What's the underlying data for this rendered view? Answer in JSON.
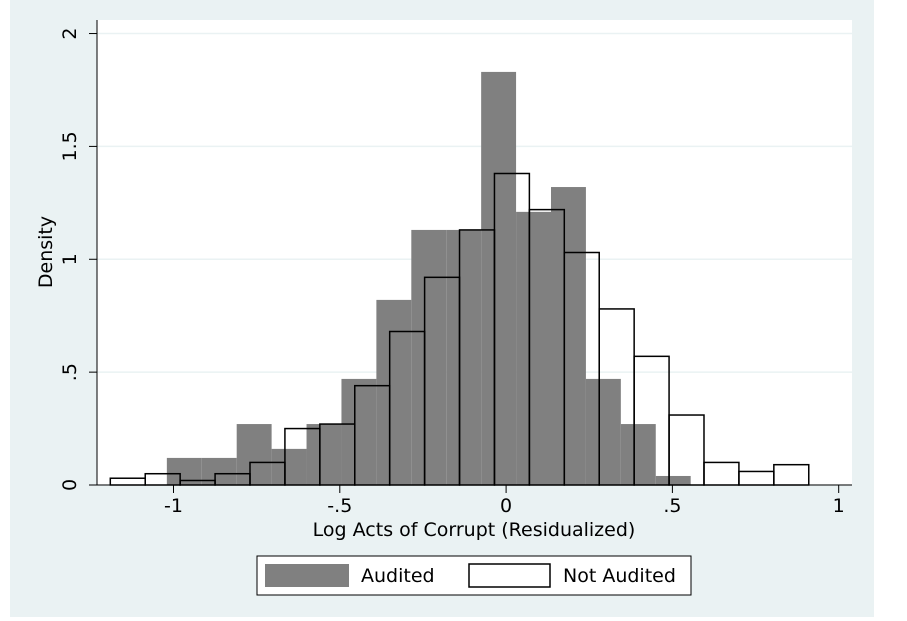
{
  "chart_data": {
    "type": "bar",
    "subtype": "overlaid-histogram",
    "title": "",
    "xlabel": "Log Acts of Corrupt (Residualized)",
    "ylabel": "Density",
    "xlim": [
      -1.23,
      1.04
    ],
    "ylim": [
      0,
      2.06
    ],
    "xticks": [
      {
        "value": -1,
        "label": "-1"
      },
      {
        "value": -0.5,
        "label": "-.5"
      },
      {
        "value": 0,
        "label": "0"
      },
      {
        "value": 0.5,
        "label": ".5"
      },
      {
        "value": 1,
        "label": "1"
      }
    ],
    "yticks": [
      {
        "value": 0,
        "label": "0"
      },
      {
        "value": 0.5,
        "label": ".5"
      },
      {
        "value": 1,
        "label": "1"
      },
      {
        "value": 1.5,
        "label": "1.5"
      },
      {
        "value": 2,
        "label": "2"
      }
    ],
    "grid": true,
    "legend_position": "bottom",
    "series": [
      {
        "name": "Audited",
        "style": "filled",
        "color": "#808080",
        "bins": [
          {
            "x0": -1.02,
            "x1": -0.915,
            "y": 0.12
          },
          {
            "x0": -0.915,
            "x1": -0.81,
            "y": 0.12
          },
          {
            "x0": -0.81,
            "x1": -0.705,
            "y": 0.27
          },
          {
            "x0": -0.705,
            "x1": -0.6,
            "y": 0.16
          },
          {
            "x0": -0.6,
            "x1": -0.495,
            "y": 0.27
          },
          {
            "x0": -0.495,
            "x1": -0.39,
            "y": 0.47
          },
          {
            "x0": -0.39,
            "x1": -0.285,
            "y": 0.82
          },
          {
            "x0": -0.285,
            "x1": -0.18,
            "y": 1.13
          },
          {
            "x0": -0.18,
            "x1": -0.075,
            "y": 1.13
          },
          {
            "x0": -0.075,
            "x1": 0.03,
            "y": 1.83
          },
          {
            "x0": 0.03,
            "x1": 0.135,
            "y": 1.21
          },
          {
            "x0": 0.135,
            "x1": 0.24,
            "y": 1.32
          },
          {
            "x0": 0.24,
            "x1": 0.345,
            "y": 0.47
          },
          {
            "x0": 0.345,
            "x1": 0.45,
            "y": 0.27
          },
          {
            "x0": 0.45,
            "x1": 0.555,
            "y": 0.04
          }
        ]
      },
      {
        "name": "Not Audited",
        "style": "outline",
        "color": "#000000",
        "bins": [
          {
            "x0": -1.19,
            "x1": -1.085,
            "y": 0.03
          },
          {
            "x0": -1.085,
            "x1": -0.98,
            "y": 0.05
          },
          {
            "x0": -0.98,
            "x1": -0.875,
            "y": 0.02
          },
          {
            "x0": -0.875,
            "x1": -0.77,
            "y": 0.05
          },
          {
            "x0": -0.77,
            "x1": -0.665,
            "y": 0.1
          },
          {
            "x0": -0.665,
            "x1": -0.56,
            "y": 0.25
          },
          {
            "x0": -0.56,
            "x1": -0.455,
            "y": 0.27
          },
          {
            "x0": -0.455,
            "x1": -0.35,
            "y": 0.44
          },
          {
            "x0": -0.35,
            "x1": -0.245,
            "y": 0.68
          },
          {
            "x0": -0.245,
            "x1": -0.14,
            "y": 0.92
          },
          {
            "x0": -0.14,
            "x1": -0.035,
            "y": 1.13
          },
          {
            "x0": -0.035,
            "x1": 0.07,
            "y": 1.38
          },
          {
            "x0": 0.07,
            "x1": 0.175,
            "y": 1.22
          },
          {
            "x0": 0.175,
            "x1": 0.28,
            "y": 1.03
          },
          {
            "x0": 0.28,
            "x1": 0.385,
            "y": 0.78
          },
          {
            "x0": 0.385,
            "x1": 0.49,
            "y": 0.57
          },
          {
            "x0": 0.49,
            "x1": 0.595,
            "y": 0.31
          },
          {
            "x0": 0.595,
            "x1": 0.7,
            "y": 0.1
          },
          {
            "x0": 0.7,
            "x1": 0.805,
            "y": 0.06
          },
          {
            "x0": 0.805,
            "x1": 0.91,
            "y": 0.09
          }
        ]
      }
    ]
  }
}
